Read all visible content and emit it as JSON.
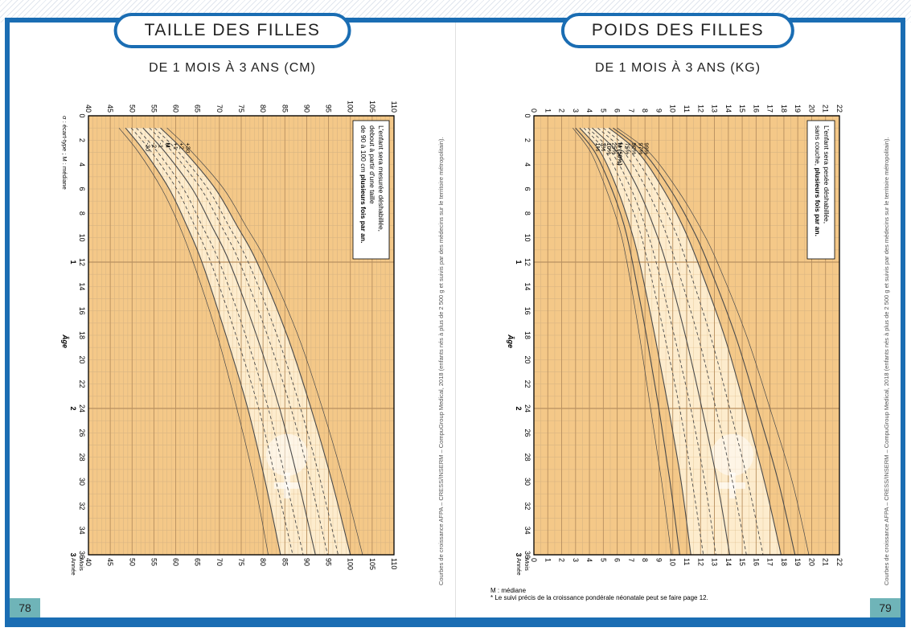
{
  "colors": {
    "border": "#1a6db3",
    "grid_bg": "#f4c888",
    "grid_minor": "#d9b583",
    "grid_major": "#b89060",
    "band": "#fdeccd",
    "curve": "#4a4a4a",
    "page_num_bg": "#6fb4b8",
    "watermark": "#ffffff"
  },
  "left": {
    "title": "TAILLE DES FILLES",
    "subtitle": "DE 1 MOIS À 3 ANS (CM)",
    "pagenum": "78",
    "credit": "Courbes de croissance AFPA – CRESS/INSERM – CompuGroup Medical, 2018 (enfants nés à plus de 2 500 g et suivis par des médecins sur le territoire métropolitain).",
    "footnote_sigma": "σ : écart-type ; M : médiane",
    "note_lines": [
      "L'enfant sera mesurée déshabillée,",
      "debout à partir d'une taille",
      "de 90 à 100 cm plusieurs fois par an."
    ],
    "chart": {
      "type": "growth-curve",
      "x_min": 0,
      "x_max": 36,
      "y_min": 40,
      "y_max": 110,
      "x_majors": [
        0,
        12,
        24,
        36
      ],
      "x_ticks": [
        0,
        2,
        4,
        6,
        8,
        10,
        12,
        14,
        16,
        18,
        20,
        22,
        24,
        26,
        28,
        30,
        32,
        34,
        36
      ],
      "x_sublabels": {
        "12": "1",
        "24": "2",
        "36": "3"
      },
      "x_axis_label": "Âge",
      "x_sec_labels": [
        "Mois",
        "Année"
      ],
      "y_ticks": [
        40,
        45,
        50,
        55,
        60,
        65,
        70,
        75,
        80,
        85,
        90,
        95,
        100,
        105,
        110
      ],
      "curve_labels_top": [
        "+3σ",
        "+2",
        "+1",
        "M",
        "-1",
        "-2",
        "-3σ"
      ],
      "curves": {
        "p3": [
          [
            1,
            48.5
          ],
          [
            3,
            53.0
          ],
          [
            6,
            58.5
          ],
          [
            9,
            62.5
          ],
          [
            12,
            66.0
          ],
          [
            18,
            71.5
          ],
          [
            24,
            76.5
          ],
          [
            30,
            80.5
          ],
          [
            36,
            84.0
          ]
        ],
        "p10": [
          [
            1,
            49.8
          ],
          [
            3,
            54.5
          ],
          [
            6,
            60.2
          ],
          [
            9,
            64.3
          ],
          [
            12,
            68.0
          ],
          [
            18,
            73.8
          ],
          [
            24,
            79.0
          ],
          [
            30,
            83.0
          ],
          [
            36,
            86.8
          ]
        ],
        "p25": [
          [
            1,
            51.0
          ],
          [
            3,
            55.9
          ],
          [
            6,
            61.8
          ],
          [
            9,
            66.0
          ],
          [
            12,
            70.0
          ],
          [
            18,
            76.0
          ],
          [
            24,
            81.2
          ],
          [
            30,
            85.3
          ],
          [
            36,
            89.2
          ]
        ],
        "p50": [
          [
            1,
            52.5
          ],
          [
            3,
            57.6
          ],
          [
            6,
            63.8
          ],
          [
            9,
            68.2
          ],
          [
            12,
            72.3
          ],
          [
            18,
            78.5
          ],
          [
            24,
            83.8
          ],
          [
            30,
            88.1
          ],
          [
            36,
            92.0
          ]
        ],
        "p75": [
          [
            1,
            54.0
          ],
          [
            3,
            59.3
          ],
          [
            6,
            65.8
          ],
          [
            9,
            70.4
          ],
          [
            12,
            74.6
          ],
          [
            18,
            81.0
          ],
          [
            24,
            86.4
          ],
          [
            30,
            90.9
          ],
          [
            36,
            94.8
          ]
        ],
        "p90": [
          [
            1,
            55.2
          ],
          [
            3,
            60.7
          ],
          [
            6,
            67.4
          ],
          [
            9,
            72.1
          ],
          [
            12,
            76.6
          ],
          [
            18,
            83.2
          ],
          [
            24,
            88.6
          ],
          [
            30,
            93.2
          ],
          [
            36,
            97.2
          ]
        ],
        "p97": [
          [
            1,
            56.5
          ],
          [
            3,
            62.2
          ],
          [
            6,
            69.1
          ],
          [
            9,
            74.0
          ],
          [
            12,
            78.6
          ],
          [
            18,
            85.5
          ],
          [
            24,
            91.0
          ],
          [
            30,
            95.8
          ],
          [
            36,
            100.0
          ]
        ],
        "upper_lim": [
          [
            1,
            58.0
          ],
          [
            3,
            63.8
          ],
          [
            6,
            71.0
          ],
          [
            9,
            76.0
          ],
          [
            12,
            80.8
          ],
          [
            18,
            88.0
          ],
          [
            24,
            93.6
          ],
          [
            30,
            98.5
          ],
          [
            36,
            102.8
          ]
        ],
        "lower_lim": [
          [
            1,
            47.0
          ],
          [
            3,
            51.5
          ],
          [
            6,
            56.8
          ],
          [
            9,
            60.8
          ],
          [
            12,
            64.0
          ],
          [
            18,
            69.5
          ],
          [
            24,
            74.0
          ],
          [
            30,
            78.0
          ],
          [
            36,
            81.2
          ]
        ]
      }
    }
  },
  "right": {
    "title": "POIDS DES FILLES",
    "subtitle": "DE 1 MOIS À 3 ANS (KG)",
    "pagenum": "79",
    "credit": "Courbes de croissance AFPA – CRESS/INSERM – CompuGroup Medical, 2018 (enfants nés à plus de 2 500 g et suivis par des médecins sur le territoire métropolitain).",
    "footnote_median": "M : médiane",
    "footnote_ref": "* Le suivi précis de la croissance pondérale néonatale peut se faire page 12.",
    "note_lines": [
      "L'enfant sera pesée déshabillée,",
      "sans couche, plusieurs fois par an."
    ],
    "chart": {
      "type": "growth-curve",
      "x_min": 0,
      "x_max": 36,
      "y_min": 0,
      "y_max": 22,
      "x_majors": [
        0,
        12,
        24,
        36
      ],
      "x_ticks": [
        0,
        2,
        4,
        6,
        8,
        10,
        12,
        14,
        16,
        18,
        20,
        22,
        24,
        26,
        28,
        30,
        32,
        34,
        36
      ],
      "x_sublabels": {
        "12": "1",
        "24": "2",
        "36": "3"
      },
      "x_axis_label": "Âge",
      "x_sec_labels": [
        "Mois",
        "Année"
      ],
      "y_ticks": [
        0,
        1,
        2,
        3,
        4,
        5,
        6,
        7,
        8,
        9,
        10,
        11,
        12,
        13,
        14,
        15,
        16,
        17,
        18,
        19,
        20,
        21,
        22
      ],
      "curve_labels_top": [
        "99%",
        "97%",
        "90%",
        "75%",
        "M (50%)",
        "25%",
        "10%",
        "3%",
        "1%"
      ],
      "curves": {
        "p1": [
          [
            1,
            3.0
          ],
          [
            3,
            4.4
          ],
          [
            6,
            5.6
          ],
          [
            9,
            6.5
          ],
          [
            12,
            7.1
          ],
          [
            18,
            8.1
          ],
          [
            24,
            9.0
          ],
          [
            30,
            9.8
          ],
          [
            36,
            10.5
          ]
        ],
        "p3": [
          [
            1,
            3.3
          ],
          [
            3,
            4.8
          ],
          [
            6,
            6.0
          ],
          [
            9,
            6.9
          ],
          [
            12,
            7.6
          ],
          [
            18,
            8.7
          ],
          [
            24,
            9.7
          ],
          [
            30,
            10.6
          ],
          [
            36,
            11.3
          ]
        ],
        "p10": [
          [
            1,
            3.6
          ],
          [
            3,
            5.2
          ],
          [
            6,
            6.5
          ],
          [
            9,
            7.5
          ],
          [
            12,
            8.2
          ],
          [
            18,
            9.4
          ],
          [
            24,
            10.5
          ],
          [
            30,
            11.4
          ],
          [
            36,
            12.2
          ]
        ],
        "p25": [
          [
            1,
            3.9
          ],
          [
            3,
            5.6
          ],
          [
            6,
            7.0
          ],
          [
            9,
            8.0
          ],
          [
            12,
            8.8
          ],
          [
            18,
            10.1
          ],
          [
            24,
            11.3
          ],
          [
            30,
            12.3
          ],
          [
            36,
            13.1
          ]
        ],
        "p50": [
          [
            1,
            4.2
          ],
          [
            3,
            6.0
          ],
          [
            6,
            7.5
          ],
          [
            9,
            8.6
          ],
          [
            12,
            9.5
          ],
          [
            18,
            10.9
          ],
          [
            24,
            12.1
          ],
          [
            30,
            13.2
          ],
          [
            36,
            14.1
          ]
        ],
        "p75": [
          [
            1,
            4.6
          ],
          [
            3,
            6.5
          ],
          [
            6,
            8.1
          ],
          [
            9,
            9.3
          ],
          [
            12,
            10.2
          ],
          [
            18,
            11.8
          ],
          [
            24,
            13.1
          ],
          [
            30,
            14.3
          ],
          [
            36,
            15.3
          ]
        ],
        "p90": [
          [
            1,
            5.0
          ],
          [
            3,
            7.0
          ],
          [
            6,
            8.7
          ],
          [
            9,
            10.0
          ],
          [
            12,
            11.0
          ],
          [
            18,
            12.7
          ],
          [
            24,
            14.1
          ],
          [
            30,
            15.4
          ],
          [
            36,
            16.5
          ]
        ],
        "p97": [
          [
            1,
            5.4
          ],
          [
            3,
            7.5
          ],
          [
            6,
            9.3
          ],
          [
            9,
            10.7
          ],
          [
            12,
            11.8
          ],
          [
            18,
            13.7
          ],
          [
            24,
            15.2
          ],
          [
            30,
            16.6
          ],
          [
            36,
            17.8
          ]
        ],
        "p99": [
          [
            1,
            5.7
          ],
          [
            3,
            7.9
          ],
          [
            6,
            9.8
          ],
          [
            9,
            11.3
          ],
          [
            12,
            12.5
          ],
          [
            18,
            14.5
          ],
          [
            24,
            16.1
          ],
          [
            30,
            17.6
          ],
          [
            36,
            18.8
          ]
        ],
        "upper_lim": [
          [
            1,
            6.0
          ],
          [
            3,
            8.3
          ],
          [
            6,
            10.3
          ],
          [
            9,
            11.9
          ],
          [
            12,
            13.2
          ],
          [
            18,
            15.3
          ],
          [
            24,
            17.0
          ],
          [
            30,
            18.6
          ],
          [
            36,
            19.8
          ]
        ],
        "lower_lim": [
          [
            1,
            2.8
          ],
          [
            3,
            4.1
          ],
          [
            6,
            5.2
          ],
          [
            9,
            6.1
          ],
          [
            12,
            6.7
          ],
          [
            18,
            7.6
          ],
          [
            24,
            8.4
          ],
          [
            30,
            9.2
          ],
          [
            36,
            9.9
          ]
        ]
      }
    }
  }
}
